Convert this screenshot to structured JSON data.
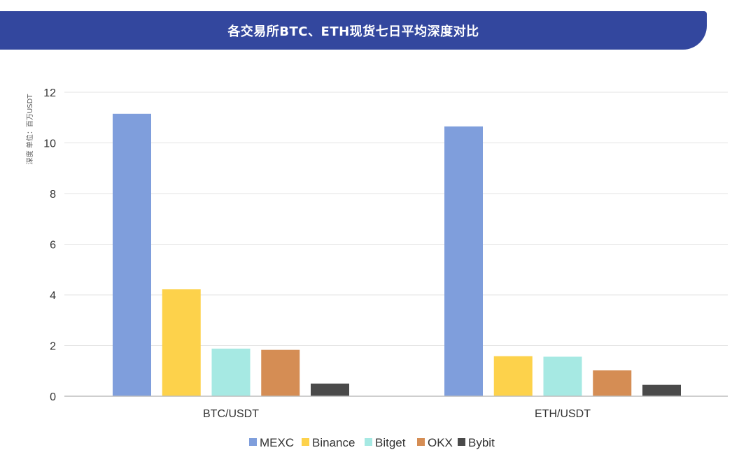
{
  "title": "各交易所BTC、ETH现货七日平均深度对比",
  "colors": {
    "banner": "#33479e",
    "grid": "#e3e3e3",
    "axis": "#bdbdbd"
  },
  "chart_data": {
    "type": "bar",
    "ylabel": "深度 单位：百万USDT",
    "xlabel": "",
    "ylim": [
      0,
      12
    ],
    "yticks": [
      0,
      2,
      4,
      6,
      8,
      10,
      12
    ],
    "grid": true,
    "legend_position": "bottom",
    "categories": [
      "BTC/USDT",
      "ETH/USDT"
    ],
    "series": [
      {
        "name": "MEXC",
        "color": "#7f9edc",
        "values": [
          11.15,
          10.65
        ]
      },
      {
        "name": "Binance",
        "color": "#fdd24b",
        "values": [
          4.22,
          1.58
        ]
      },
      {
        "name": "Bitget",
        "color": "#a6e9e3",
        "values": [
          1.88,
          1.56
        ]
      },
      {
        "name": "OKX",
        "color": "#d58d54",
        "values": [
          1.83,
          1.02
        ]
      },
      {
        "name": "Bybit",
        "color": "#4a4a4a",
        "values": [
          0.5,
          0.45
        ]
      }
    ]
  }
}
